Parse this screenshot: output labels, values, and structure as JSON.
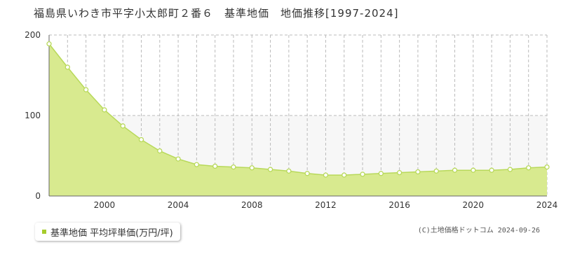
{
  "title": "福島県いわき市平字小太郎町２番６　基準地価　地価推移[1997-2024]",
  "legend_label": "基準地価 平均坪単価(万円/坪)",
  "credit": "(C)土地価格ドットコム 2024-09-26",
  "colors": {
    "fill": "#d8ea8f",
    "line": "#b8d95a",
    "point_stroke": "#b8d95a",
    "point_fill": "#ffffff",
    "legend_marker": "#a6cc2c",
    "grid": "#bbbbbb",
    "band": "#f7f7f7"
  },
  "chart_data": {
    "type": "area",
    "x": [
      1997,
      1998,
      1999,
      2000,
      2001,
      2002,
      2003,
      2004,
      2005,
      2006,
      2007,
      2008,
      2009,
      2010,
      2011,
      2012,
      2013,
      2014,
      2015,
      2016,
      2017,
      2018,
      2019,
      2020,
      2021,
      2022,
      2023,
      2024
    ],
    "series": [
      {
        "name": "基準地価 平均坪単価(万円/坪)",
        "values": [
          189,
          160,
          132,
          107,
          87,
          70,
          56,
          46,
          39,
          37,
          36,
          35,
          33,
          31,
          28,
          26,
          26,
          27,
          28,
          29,
          30,
          31,
          32,
          32,
          32,
          33,
          35,
          36
        ]
      }
    ],
    "xlim": [
      1997,
      2024
    ],
    "ylim": [
      0,
      200
    ],
    "xticks": [
      "2000",
      "2004",
      "2008",
      "2012",
      "2016",
      "2020",
      "2024"
    ],
    "yticks": [
      "0",
      "100",
      "200"
    ],
    "grid": true,
    "legend": "bottom-left"
  }
}
